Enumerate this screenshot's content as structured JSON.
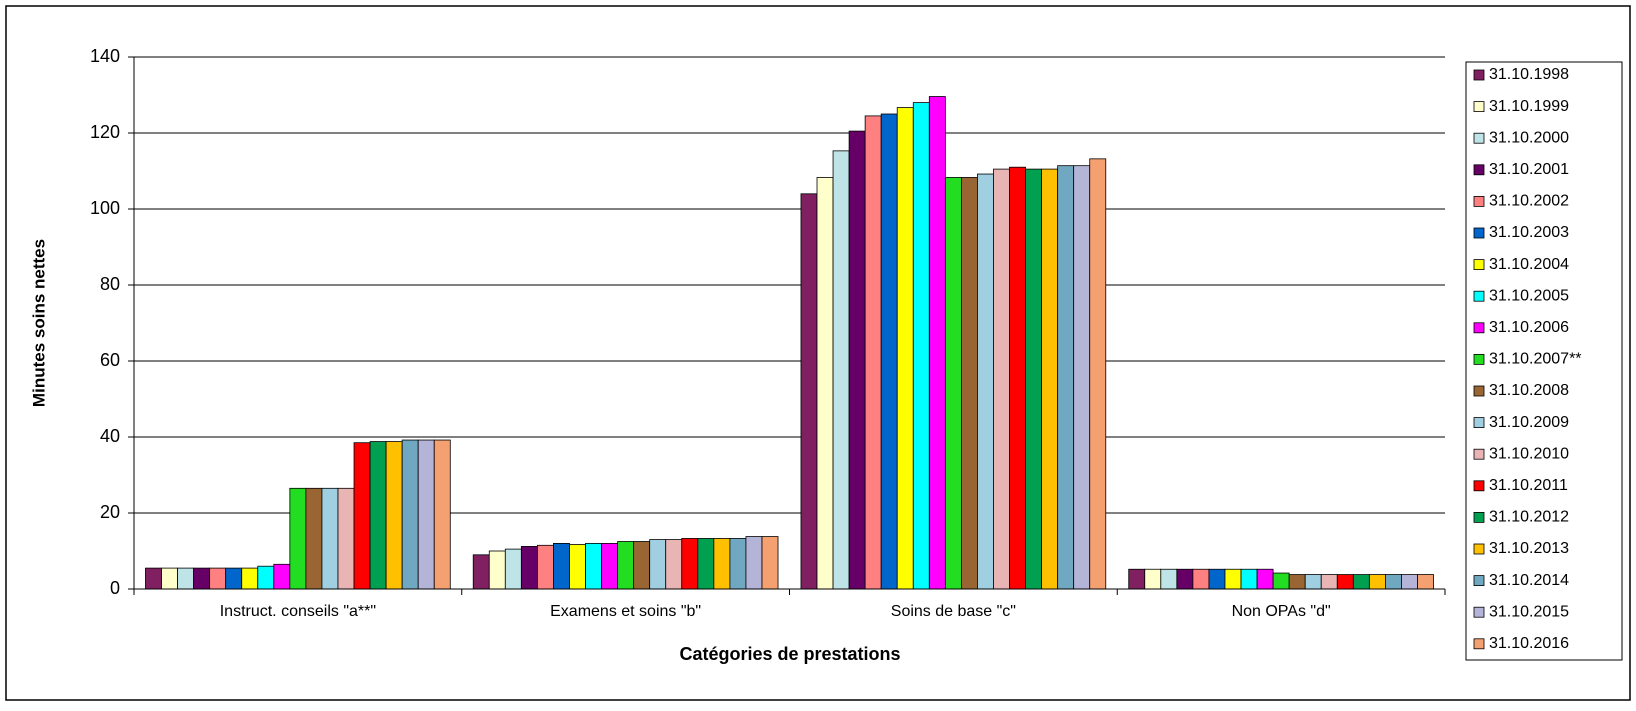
{
  "chart_data": {
    "type": "bar",
    "x_label": "Catégories de prestations",
    "y_label": "Minutes soins nettes",
    "categories": [
      "Instruct. conseils \"a**\"",
      "Examens et soins \"b\"",
      "Soins de base \"c\"",
      "Non OPAs \"d\""
    ],
    "ylim": [
      0,
      140
    ],
    "yticks": [
      0,
      20,
      40,
      60,
      80,
      100,
      120,
      140
    ],
    "grid": true,
    "legend": "right",
    "series": [
      {
        "name": "31.10.1998",
        "color": "#802060",
        "values": [
          5.5,
          9,
          104,
          5.2
        ]
      },
      {
        "name": "31.10.1999",
        "color": "#ffffcc",
        "values": [
          5.5,
          10,
          108.3,
          5.2
        ]
      },
      {
        "name": "31.10.2000",
        "color": "#bfe4e8",
        "values": [
          5.5,
          10.5,
          115.3,
          5.2
        ]
      },
      {
        "name": "31.10.2001",
        "color": "#660066",
        "values": [
          5.5,
          11.2,
          120.5,
          5.2
        ]
      },
      {
        "name": "31.10.2002",
        "color": "#ff8080",
        "values": [
          5.5,
          11.5,
          124.5,
          5.2
        ]
      },
      {
        "name": "31.10.2003",
        "color": "#0066cc",
        "values": [
          5.5,
          12,
          125,
          5.2
        ]
      },
      {
        "name": "31.10.2004",
        "color": "#ffff00",
        "values": [
          5.5,
          11.7,
          126.7,
          5.2
        ]
      },
      {
        "name": "31.10.2005",
        "color": "#00ffff",
        "values": [
          6,
          12,
          128,
          5.2
        ]
      },
      {
        "name": "31.10.2006",
        "color": "#ff00ff",
        "values": [
          6.5,
          12,
          129.6,
          5.2
        ]
      },
      {
        "name": "31.10.2007**",
        "color": "#22dd22",
        "values": [
          26.5,
          12.5,
          108.3,
          4.2
        ]
      },
      {
        "name": "31.10.2008",
        "color": "#996633",
        "values": [
          26.5,
          12.5,
          108.3,
          3.8
        ]
      },
      {
        "name": "31.10.2009",
        "color": "#9fcfe0",
        "values": [
          26.5,
          13,
          109.2,
          3.8
        ]
      },
      {
        "name": "31.10.2010",
        "color": "#e8b4b4",
        "values": [
          26.5,
          13,
          110.5,
          3.8
        ]
      },
      {
        "name": "31.10.2011",
        "color": "#ff0000",
        "values": [
          38.5,
          13.3,
          111,
          3.8
        ]
      },
      {
        "name": "31.10.2012",
        "color": "#00a050",
        "values": [
          38.8,
          13.3,
          110.5,
          3.8
        ]
      },
      {
        "name": "31.10.2013",
        "color": "#ffc000",
        "values": [
          38.8,
          13.3,
          110.5,
          3.8
        ]
      },
      {
        "name": "31.10.2014",
        "color": "#6fa8c0",
        "values": [
          39.2,
          13.3,
          111.4,
          3.8
        ]
      },
      {
        "name": "31.10.2015",
        "color": "#b4b4d8",
        "values": [
          39.2,
          13.8,
          111.4,
          3.8
        ]
      },
      {
        "name": "31.10.2016",
        "color": "#f4a070",
        "values": [
          39.2,
          13.8,
          113.2,
          3.8
        ]
      }
    ]
  }
}
